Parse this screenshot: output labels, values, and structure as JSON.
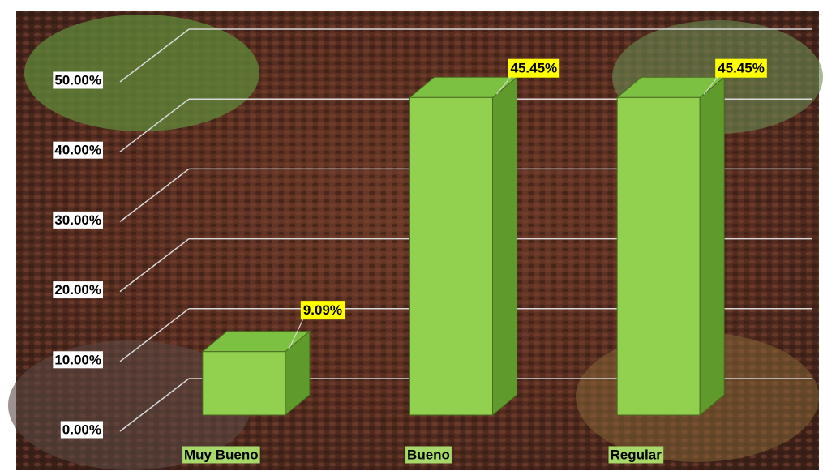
{
  "chart_data": {
    "type": "bar3d",
    "categories": [
      "Muy Bueno",
      "Bueno",
      "Regular"
    ],
    "values": [
      9.09,
      45.45,
      45.45
    ],
    "value_labels": [
      "9.09%",
      "45.45%",
      "45.45%"
    ],
    "color": "#92d050",
    "ylim": [
      0,
      50
    ],
    "yticks": [
      {
        "value": 0,
        "label": "0.00%"
      },
      {
        "value": 10,
        "label": "10.00%"
      },
      {
        "value": 20,
        "label": "20.00%"
      },
      {
        "value": 30,
        "label": "30.00%"
      },
      {
        "value": 40,
        "label": "40.00%"
      },
      {
        "value": 50,
        "label": "50.00%"
      }
    ],
    "grid": true
  }
}
